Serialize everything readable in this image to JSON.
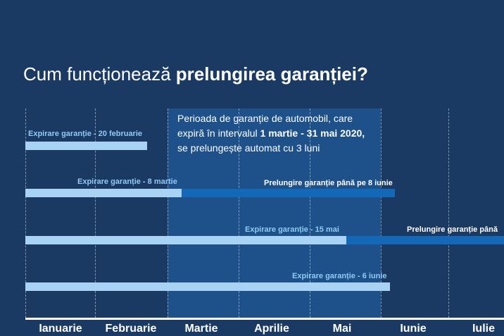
{
  "title": {
    "normal": "Cum funcționează ",
    "bold": "prelungirea garanției?"
  },
  "note": {
    "line1": "Perioada de garanție de automobil, care",
    "line2_pre": "expiră în intervalul ",
    "line2_bold": "1 martie - 31 mai 2020,",
    "line3": "se prelungește automat cu 3 luni"
  },
  "months": [
    "Ianuarie",
    "Februarie",
    "Martie",
    "Aprilie",
    "Mai",
    "Iunie",
    "Iulie"
  ],
  "rows": [
    {
      "expiry_label": "Expirare garanție - 20 februarie"
    },
    {
      "expiry_label": "Expirare garanție - 8 martie",
      "extension_label": "Prelungire garanție până pe 8 iunie"
    },
    {
      "expiry_label": "Expirare garanție - 15 mai",
      "extension_label": "Prelungire garanție până"
    },
    {
      "expiry_label": "Expirare garanție - 6 iunie"
    }
  ],
  "colors": {
    "background": "#1b3a63",
    "highlight_period": "#1e5189",
    "warranty_bar": "#a9d3f5",
    "extension_bar": "#1468b8",
    "label_blue": "#8fcaf5"
  }
}
